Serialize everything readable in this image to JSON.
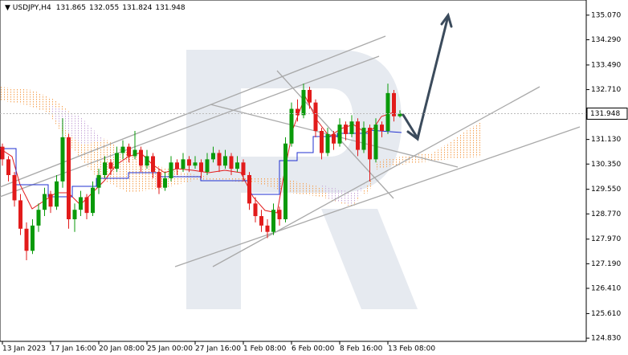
{
  "chart_data": {
    "type": "candlestick",
    "title": "USDJPY,H4",
    "categories": [
      "13 Jan 2023",
      null,
      null,
      null,
      null,
      null,
      null,
      null,
      "17 Jan 16:00",
      null,
      null,
      null,
      null,
      null,
      null,
      null,
      "20 Jan 08:00",
      null,
      null,
      null,
      null,
      null,
      null,
      null,
      "25 Jan 00:00",
      null,
      null,
      null,
      null,
      null,
      null,
      null,
      "27 Jan 16:00",
      null,
      null,
      null,
      null,
      null,
      null,
      null,
      "1 Feb 08:00",
      null,
      null,
      null,
      null,
      null,
      null,
      null,
      "6 Feb 00:00",
      null,
      null,
      null,
      null,
      null,
      null,
      null,
      "8 Feb 16:00",
      null,
      null,
      null,
      null,
      null,
      null,
      null,
      "13 Feb 08:00",
      null,
      null
    ],
    "ohlc": [
      [
        130.9,
        131.0,
        130.3,
        130.5
      ],
      [
        130.5,
        130.6,
        129.8,
        130.0
      ],
      [
        130.0,
        130.1,
        129.0,
        129.2
      ],
      [
        129.2,
        129.4,
        128.1,
        128.3
      ],
      [
        128.3,
        128.5,
        127.3,
        127.6
      ],
      [
        127.6,
        128.6,
        127.5,
        128.4
      ],
      [
        128.4,
        129.1,
        128.2,
        128.9
      ],
      [
        128.9,
        129.6,
        128.7,
        129.4
      ],
      [
        129.4,
        129.5,
        128.8,
        129.0
      ],
      [
        129.0,
        130.0,
        128.9,
        129.8
      ],
      [
        129.8,
        131.8,
        129.6,
        131.2
      ],
      [
        131.2,
        131.3,
        128.3,
        128.6
      ],
      [
        128.6,
        129.1,
        128.2,
        128.9
      ],
      [
        128.9,
        129.5,
        128.7,
        129.3
      ],
      [
        129.3,
        129.4,
        128.6,
        128.8
      ],
      [
        128.8,
        129.8,
        128.7,
        129.6
      ],
      [
        129.6,
        130.2,
        129.4,
        130.0
      ],
      [
        130.0,
        130.6,
        129.9,
        130.4
      ],
      [
        130.4,
        130.5,
        130.0,
        130.2
      ],
      [
        130.2,
        130.9,
        130.1,
        130.7
      ],
      [
        130.7,
        131.1,
        130.5,
        130.9
      ],
      [
        130.9,
        131.0,
        130.4,
        130.6
      ],
      [
        130.6,
        131.4,
        130.5,
        130.8
      ],
      [
        130.8,
        130.9,
        130.1,
        130.3
      ],
      [
        130.3,
        130.8,
        130.2,
        130.6
      ],
      [
        130.6,
        130.7,
        129.9,
        130.1
      ],
      [
        130.1,
        130.2,
        129.4,
        129.6
      ],
      [
        129.6,
        130.1,
        129.5,
        129.9
      ],
      [
        129.9,
        130.6,
        129.8,
        130.4
      ],
      [
        130.4,
        130.5,
        130.0,
        130.2
      ],
      [
        130.2,
        130.7,
        130.1,
        130.5
      ],
      [
        130.5,
        130.6,
        130.1,
        130.3
      ],
      [
        130.3,
        130.6,
        130.2,
        130.4
      ],
      [
        130.4,
        130.5,
        129.9,
        130.1
      ],
      [
        130.1,
        130.7,
        130.0,
        130.5
      ],
      [
        130.5,
        130.9,
        130.4,
        130.7
      ],
      [
        130.7,
        130.8,
        130.1,
        130.3
      ],
      [
        130.3,
        130.8,
        130.2,
        130.6
      ],
      [
        130.6,
        130.7,
        130.0,
        130.2
      ],
      [
        130.2,
        130.6,
        130.1,
        130.4
      ],
      [
        130.4,
        130.5,
        129.8,
        130.0
      ],
      [
        130.0,
        130.1,
        128.9,
        129.1
      ],
      [
        129.1,
        129.3,
        128.5,
        128.7
      ],
      [
        128.7,
        128.9,
        128.2,
        128.4
      ],
      [
        128.4,
        128.6,
        128.0,
        128.2
      ],
      [
        128.2,
        129.1,
        128.1,
        128.9
      ],
      [
        128.9,
        129.0,
        128.4,
        128.6
      ],
      [
        128.6,
        131.2,
        128.5,
        131.0
      ],
      [
        131.0,
        132.3,
        130.9,
        132.1
      ],
      [
        132.1,
        132.4,
        131.7,
        131.9
      ],
      [
        131.9,
        132.9,
        131.8,
        132.7
      ],
      [
        132.7,
        132.8,
        132.1,
        132.3
      ],
      [
        132.3,
        132.4,
        131.2,
        131.4
      ],
      [
        131.4,
        131.5,
        130.5,
        130.7
      ],
      [
        130.7,
        131.5,
        130.6,
        131.3
      ],
      [
        131.3,
        131.4,
        130.8,
        131.0
      ],
      [
        131.0,
        131.8,
        130.9,
        131.6
      ],
      [
        131.6,
        131.7,
        131.1,
        131.3
      ],
      [
        131.3,
        131.9,
        131.2,
        131.7
      ],
      [
        131.7,
        131.8,
        130.6,
        130.8
      ],
      [
        130.8,
        131.7,
        130.7,
        131.5
      ],
      [
        131.5,
        131.6,
        129.8,
        130.5
      ],
      [
        130.5,
        131.8,
        130.4,
        131.6
      ],
      [
        131.6,
        131.7,
        131.2,
        131.4
      ],
      [
        131.4,
        132.9,
        131.3,
        132.6
      ],
      [
        132.6,
        132.7,
        131.7,
        131.865
      ],
      [
        131.865,
        132.055,
        131.824,
        131.948
      ]
    ],
    "up_color": "#0a9a0a",
    "down_color": "#e21b1b",
    "ylim": [
      124.73,
      135.55
    ],
    "yticks": [
      {
        "value": 135.07,
        "label": "135.070"
      },
      {
        "value": 134.29,
        "label": "134.290"
      },
      {
        "value": 133.49,
        "label": "133.490"
      },
      {
        "value": 132.71,
        "label": "132.710"
      },
      {
        "value": 131.13,
        "label": "131.130"
      },
      {
        "value": 130.35,
        "label": "130.350"
      },
      {
        "value": 129.55,
        "label": "129.550"
      },
      {
        "value": 128.77,
        "label": "128.770"
      },
      {
        "value": 127.97,
        "label": "127.970"
      },
      {
        "value": 127.19,
        "label": "127.190"
      },
      {
        "value": 126.41,
        "label": "126.410"
      },
      {
        "value": 125.61,
        "label": "125.610"
      },
      {
        "value": 124.83,
        "label": "124.830"
      }
    ],
    "grid": false
  }
}
